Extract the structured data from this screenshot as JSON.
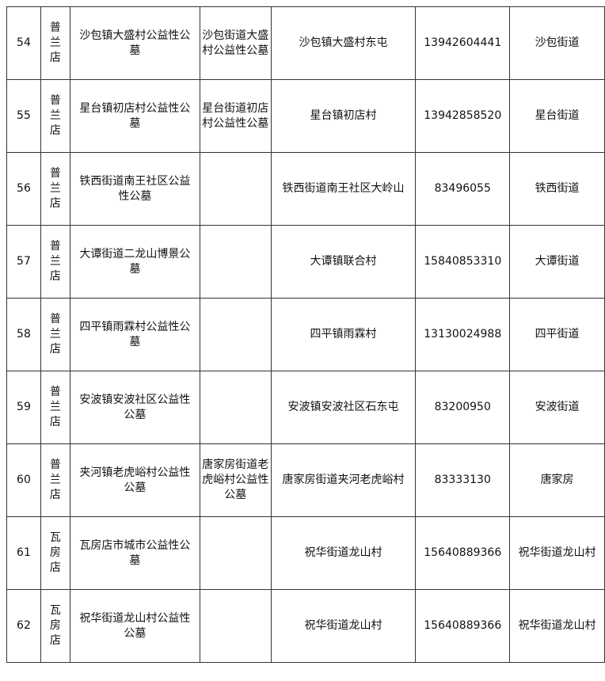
{
  "rows": [
    {
      "no": "54",
      "store": "普兰店",
      "name": "沙包镇大盛村公益性公墓",
      "alt_name": "沙包街道大盛村公益性公墓",
      "address": "沙包镇大盛村东屯",
      "phone": "13942604441",
      "street": "沙包街道"
    },
    {
      "no": "55",
      "store": "普兰店",
      "name": "星台镇初店村公益性公墓",
      "alt_name": "星台街道初店村公益性公墓",
      "address": "星台镇初店村",
      "phone": "13942858520",
      "street": "星台街道"
    },
    {
      "no": "56",
      "store": "普兰店",
      "name": "铁西街道南王社区公益性公墓",
      "alt_name": "",
      "address": "铁西街道南王社区大岭山",
      "phone": "83496055",
      "street": "铁西街道"
    },
    {
      "no": "57",
      "store": "普兰店",
      "name": "大谭街道二龙山博景公墓",
      "alt_name": "",
      "address": "大谭镇联合村",
      "phone": "15840853310",
      "street": "大谭街道"
    },
    {
      "no": "58",
      "store": "普兰店",
      "name": "四平镇雨霖村公益性公墓",
      "alt_name": "",
      "address": "四平镇雨霖村",
      "phone": "13130024988",
      "street": "四平街道"
    },
    {
      "no": "59",
      "store": "普兰店",
      "name": "安波镇安波社区公益性公墓",
      "alt_name": "",
      "address": "安波镇安波社区石东屯",
      "phone": "83200950",
      "street": "安波街道"
    },
    {
      "no": "60",
      "store": "普兰店",
      "name": "夹河镇老虎峪村公益性公墓",
      "alt_name": "唐家房街道老虎峪村公益性公墓",
      "address": "唐家房街道夹河老虎峪村",
      "phone": "83333130",
      "street": "唐家房"
    },
    {
      "no": "61",
      "store": "瓦房店",
      "name": "瓦房店市城市公益性公墓",
      "alt_name": "",
      "address": "祝华街道龙山村",
      "phone": "15640889366",
      "street": "祝华街道龙山村"
    },
    {
      "no": "62",
      "store": "瓦房店",
      "name": "祝华街道龙山村公益性公墓",
      "alt_name": "",
      "address": "祝华街道龙山村",
      "phone": "15640889366",
      "street": "祝华街道龙山村"
    }
  ]
}
